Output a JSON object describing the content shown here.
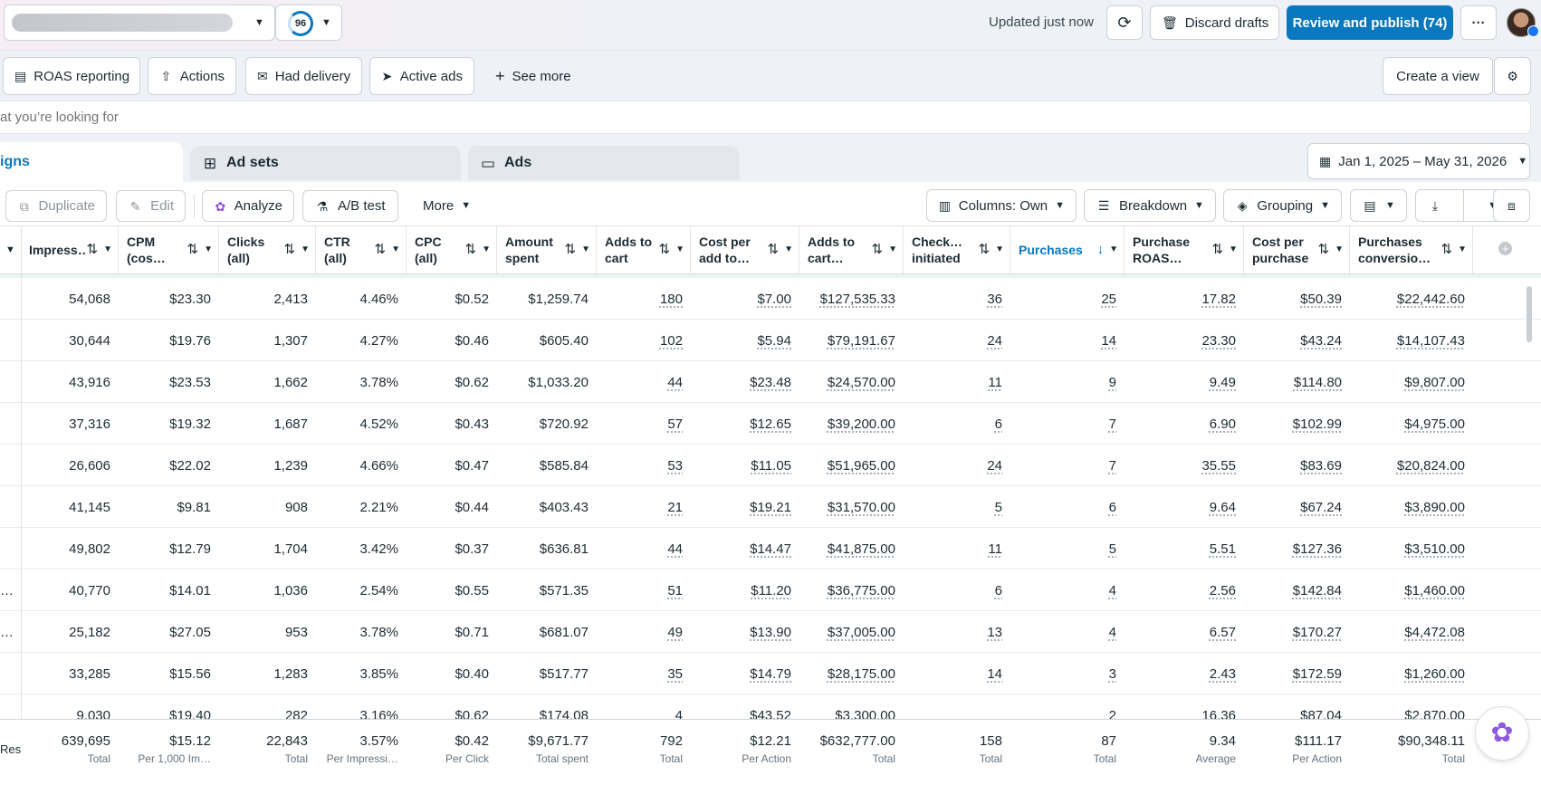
{
  "topbar": {
    "account_score": "96",
    "updated_text": "Updated just now",
    "discard_label": "Discard drafts",
    "publish_label": "Review and publish (74)",
    "more_label": "···"
  },
  "viewbar": {
    "views": [
      "ROAS reporting",
      "Actions",
      "Had delivery",
      "Active ads"
    ],
    "see_more": "See more",
    "create_view": "Create a view"
  },
  "search": {
    "placeholder": "at you’re looking for"
  },
  "tabs": {
    "campaigns": "igns",
    "adsets": "Ad sets",
    "ads": "Ads",
    "date_range": "Jan 1, 2025 – May 31, 2026"
  },
  "toolbar": {
    "duplicate": "Duplicate",
    "edit": "Edit",
    "analyze": "Analyze",
    "abtest": "A/B test",
    "more": "More",
    "columns": "Columns: Own",
    "breakdown": "Breakdown",
    "grouping": "Grouping"
  },
  "table": {
    "columns": [
      {
        "label": "Impress…"
      },
      {
        "label": "CPM (cos…"
      },
      {
        "label": "Clicks (all)"
      },
      {
        "label": "CTR (all)"
      },
      {
        "label": "CPC (all)"
      },
      {
        "label": "Amount spent"
      },
      {
        "label": "Adds to cart"
      },
      {
        "label": "Cost per add to…"
      },
      {
        "label": "Adds to cart…"
      },
      {
        "label": "Check… initiated"
      },
      {
        "label": "Purchases"
      },
      {
        "label": "Purchase ROAS…"
      },
      {
        "label": "Cost per purchase"
      },
      {
        "label": "Purchases conversio…"
      }
    ],
    "rows": [
      {
        "lead": "",
        "cells": [
          "54,068",
          "$23.30",
          "2,413",
          "4.46%",
          "$0.52",
          "$1,259.74",
          "180",
          "$7.00",
          "$127,535.33",
          "36",
          "25",
          "17.82",
          "$50.39",
          "$22,442.60"
        ]
      },
      {
        "lead": "",
        "cells": [
          "30,644",
          "$19.76",
          "1,307",
          "4.27%",
          "$0.46",
          "$605.40",
          "102",
          "$5.94",
          "$79,191.67",
          "24",
          "14",
          "23.30",
          "$43.24",
          "$14,107.43"
        ]
      },
      {
        "lead": "",
        "cells": [
          "43,916",
          "$23.53",
          "1,662",
          "3.78%",
          "$0.62",
          "$1,033.20",
          "44",
          "$23.48",
          "$24,570.00",
          "11",
          "9",
          "9.49",
          "$114.80",
          "$9,807.00"
        ]
      },
      {
        "lead": "",
        "cells": [
          "37,316",
          "$19.32",
          "1,687",
          "4.52%",
          "$0.43",
          "$720.92",
          "57",
          "$12.65",
          "$39,200.00",
          "6",
          "7",
          "6.90",
          "$102.99",
          "$4,975.00"
        ]
      },
      {
        "lead": "",
        "cells": [
          "26,606",
          "$22.02",
          "1,239",
          "4.66%",
          "$0.47",
          "$585.84",
          "53",
          "$11.05",
          "$51,965.00",
          "24",
          "7",
          "35.55",
          "$83.69",
          "$20,824.00"
        ]
      },
      {
        "lead": "",
        "cells": [
          "41,145",
          "$9.81",
          "908",
          "2.21%",
          "$0.44",
          "$403.43",
          "21",
          "$19.21",
          "$31,570.00",
          "5",
          "6",
          "9.64",
          "$67.24",
          "$3,890.00"
        ]
      },
      {
        "lead": "",
        "cells": [
          "49,802",
          "$12.79",
          "1,704",
          "3.42%",
          "$0.37",
          "$636.81",
          "44",
          "$14.47",
          "$41,875.00",
          "11",
          "5",
          "5.51",
          "$127.36",
          "$3,510.00"
        ]
      },
      {
        "lead": "…",
        "cells": [
          "40,770",
          "$14.01",
          "1,036",
          "2.54%",
          "$0.55",
          "$571.35",
          "51",
          "$11.20",
          "$36,775.00",
          "6",
          "4",
          "2.56",
          "$142.84",
          "$1,460.00"
        ]
      },
      {
        "lead": "…",
        "cells": [
          "25,182",
          "$27.05",
          "953",
          "3.78%",
          "$0.71",
          "$681.07",
          "49",
          "$13.90",
          "$37,005.00",
          "13",
          "4",
          "6.57",
          "$170.27",
          "$4,472.08"
        ]
      },
      {
        "lead": "",
        "cells": [
          "33,285",
          "$15.56",
          "1,283",
          "3.85%",
          "$0.40",
          "$517.77",
          "35",
          "$14.79",
          "$28,175.00",
          "14",
          "3",
          "2.43",
          "$172.59",
          "$1,260.00"
        ]
      }
    ],
    "partial_row": [
      "9,030",
      "$19.40",
      "282",
      "3.16%",
      "$0.62",
      "$174.08",
      "4",
      "$43.52",
      "$3,300.00",
      "",
      "2",
      "16.36",
      "$87.04",
      "$2,870.00"
    ],
    "totals_lead": "Res",
    "totals": [
      {
        "value": "639,695",
        "sub": "Total"
      },
      {
        "value": "$15.12",
        "sub": "Per 1,000 Im…"
      },
      {
        "value": "22,843",
        "sub": "Total"
      },
      {
        "value": "3.57%",
        "sub": "Per Impressi…"
      },
      {
        "value": "$0.42",
        "sub": "Per Click"
      },
      {
        "value": "$9,671.77",
        "sub": "Total spent"
      },
      {
        "value": "792",
        "sub": "Total"
      },
      {
        "value": "$12.21",
        "sub": "Per Action"
      },
      {
        "value": "$632,777.00",
        "sub": "Total"
      },
      {
        "value": "158",
        "sub": "Total"
      },
      {
        "value": "87",
        "sub": "Total"
      },
      {
        "value": "9.34",
        "sub": "Average"
      },
      {
        "value": "$111.17",
        "sub": "Per Action"
      },
      {
        "value": "$90,348.11",
        "sub": "Total"
      }
    ]
  },
  "colors": {
    "accent": "#0a78be",
    "sorted_header": "#0a78be"
  }
}
